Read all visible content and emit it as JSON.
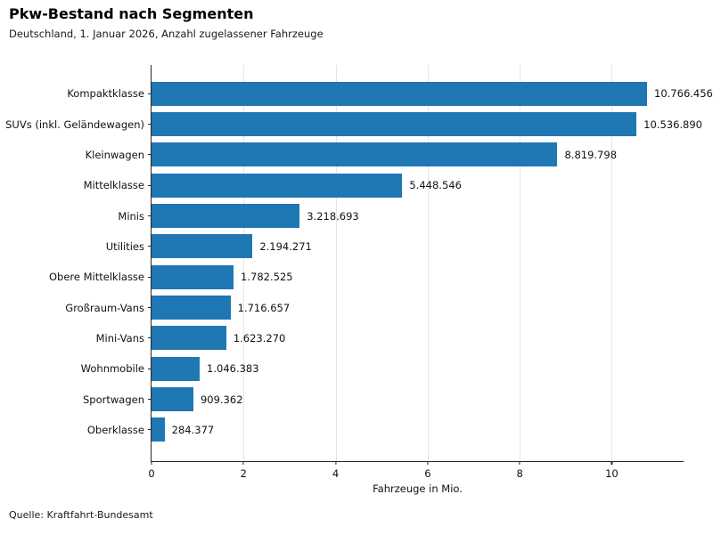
{
  "header": {
    "title": "Pkw-Bestand nach Segmenten",
    "subtitle": "Deutschland, 1. Januar 2026, Anzahl zugelassener Fahrzeuge"
  },
  "footer": {
    "source": "Quelle: Kraftfahrt-Bundesamt"
  },
  "chart_data": {
    "type": "bar",
    "orientation": "horizontal",
    "title": "Pkw-Bestand nach Segmenten",
    "subtitle": "Deutschland, 1. Januar 2026, Anzahl zugelassener Fahrzeuge",
    "categories": [
      "Kompaktklasse",
      "SUVs (inkl. Geländewagen)",
      "Kleinwagen",
      "Mittelklasse",
      "Minis",
      "Utilities",
      "Obere Mittelklasse",
      "Großraum-Vans",
      "Mini-Vans",
      "Wohnmobile",
      "Sportwagen",
      "Oberklasse"
    ],
    "values": [
      10766456,
      10536890,
      8819798,
      5448546,
      3218693,
      2194271,
      1782525,
      1716657,
      1623270,
      1046383,
      909362,
      284377
    ],
    "value_labels": [
      "10.766.456",
      "10.536.890",
      "8.819.798",
      "5.448.546",
      "3.218.693",
      "2.194.271",
      "1.782.525",
      "1.716.657",
      "1.623.270",
      "1.046.383",
      "909.362",
      "284.377"
    ],
    "xlabel": "Fahrzeuge in Mio.",
    "xlim_mio": [
      0,
      11.56
    ],
    "xticks_mio": [
      0,
      2,
      4,
      6,
      8,
      10
    ],
    "grid": "vertical-light",
    "legend": "none",
    "bar_color": "#1f77b4",
    "axis_color": "#262626",
    "grid_color": "#e4e4e4"
  }
}
